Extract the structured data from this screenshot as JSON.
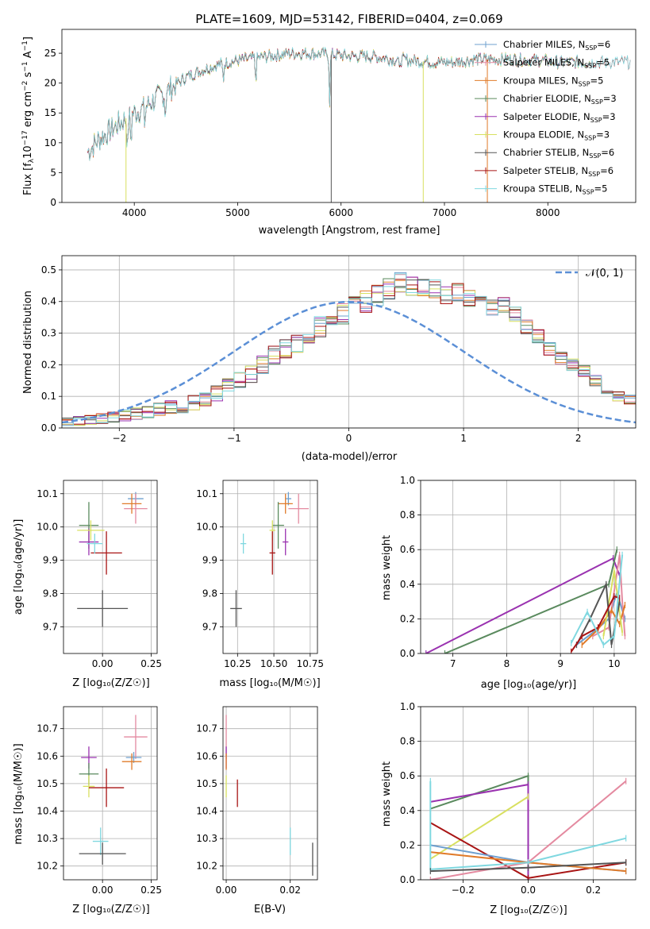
{
  "colors": {
    "chabrier_miles": "#6fa0cf",
    "salpeter_miles": "#e48aa0",
    "kroupa_miles": "#e07b2a",
    "chabrier_elodie": "#5a8a5e",
    "salpeter_elodie": "#9a32b0",
    "kroupa_elodie": "#d8e060",
    "chabrier_stelib": "#555555",
    "salpeter_stelib": "#a81414",
    "kroupa_stelib": "#80d8e0",
    "grid": "#b0b0b0"
  },
  "chart_data": [
    {
      "id": "spectrum",
      "type": "line",
      "title": "PLATE=1609, MJD=53142, FIBERID=0404, z=0.069",
      "xlabel": "wavelength [Angstrom, rest frame]",
      "ylabel_parts": [
        "Flux [f",
        "λ",
        "10",
        "−17",
        " erg cm",
        "−2",
        " s",
        "−1",
        " A",
        "−1",
        "]"
      ],
      "xlim": [
        3300,
        8850
      ],
      "ylim": [
        0,
        29
      ],
      "xticks": [
        4000,
        5000,
        6000,
        7000,
        8000
      ],
      "yticks": [
        0,
        5,
        10,
        15,
        20,
        25
      ],
      "continuum_x": [
        3550,
        3650,
        3800,
        3950,
        4100,
        4300,
        4500,
        4700,
        4900,
        5100,
        5300,
        5500,
        5700,
        5900,
        6100,
        6300,
        6500,
        6700,
        6900,
        7100,
        7300,
        7500,
        7700,
        7900,
        8100,
        8300,
        8500,
        8800
      ],
      "continuum_y": [
        8.5,
        10.5,
        12.5,
        14.5,
        16.0,
        18.5,
        21.0,
        22.5,
        23.5,
        24.0,
        24.5,
        25.0,
        25.0,
        24.8,
        24.5,
        24.5,
        24.0,
        23.8,
        23.5,
        23.5,
        24.0,
        24.0,
        24.0,
        23.8,
        23.5,
        23.5,
        23.5,
        23.5
      ],
      "legend": [
        {
          "label": "Chabrier MILES, N",
          "sub": "SSP",
          "tail": "=6",
          "color_key": "chabrier_miles"
        },
        {
          "label": "Salpeter MILES, N",
          "sub": "SSP",
          "tail": "=5",
          "color_key": "salpeter_miles"
        },
        {
          "label": "Kroupa MILES, N",
          "sub": "SSP",
          "tail": "=5",
          "color_key": "kroupa_miles"
        },
        {
          "label": "Chabrier ELODIE, N",
          "sub": "SSP",
          "tail": "=3",
          "color_key": "chabrier_elodie"
        },
        {
          "label": "Salpeter ELODIE, N",
          "sub": "SSP",
          "tail": "=3",
          "color_key": "salpeter_elodie"
        },
        {
          "label": "Kroupa ELODIE, N",
          "sub": "SSP",
          "tail": "=3",
          "color_key": "kroupa_elodie"
        },
        {
          "label": "Chabrier STELIB, N",
          "sub": "SSP",
          "tail": "=6",
          "color_key": "chabrier_stelib"
        },
        {
          "label": "Salpeter STELIB, N",
          "sub": "SSP",
          "tail": "=6",
          "color_key": "salpeter_stelib"
        },
        {
          "label": "Kroupa STELIB, N",
          "sub": "SSP",
          "tail": "=5",
          "color_key": "kroupa_stelib"
        }
      ],
      "legend_placement": "top-right",
      "grid": false
    },
    {
      "id": "residuals",
      "type": "histogram",
      "xlabel": "(data-model)/error",
      "ylabel": "Normed distribution",
      "xlim": [
        -2.5,
        2.5
      ],
      "ylim": [
        0,
        0.545
      ],
      "xticks": [
        -2,
        -1,
        0,
        1,
        2
      ],
      "xtick_labels": [
        "−2",
        "−1",
        "0",
        "1",
        "2"
      ],
      "yticks": [
        0.0,
        0.1,
        0.2,
        0.3,
        0.4,
        0.5
      ],
      "ytick_labels": [
        "0.0",
        "0.1",
        "0.2",
        "0.3",
        "0.4",
        "0.5"
      ],
      "bin_width": 0.1,
      "bin_start": -2.5,
      "base_heights": [
        0.02,
        0.022,
        0.025,
        0.03,
        0.035,
        0.04,
        0.045,
        0.05,
        0.06,
        0.065,
        0.07,
        0.08,
        0.09,
        0.11,
        0.13,
        0.15,
        0.17,
        0.2,
        0.23,
        0.25,
        0.27,
        0.3,
        0.32,
        0.34,
        0.36,
        0.38,
        0.4,
        0.42,
        0.44,
        0.46,
        0.45,
        0.44,
        0.44,
        0.42,
        0.43,
        0.41,
        0.4,
        0.38,
        0.39,
        0.36,
        0.32,
        0.29,
        0.25,
        0.22,
        0.2,
        0.18,
        0.15,
        0.12,
        0.1,
        0.09
      ],
      "gaussian_label": "𝒩(0, 1)",
      "gaussian_color": "#5b8fd6",
      "legend_placement": "top-right",
      "grid": true
    },
    {
      "id": "age_vs_Z",
      "type": "errorbar",
      "xlabel": "Z [log₁₀(Z/Z☉)]",
      "ylabel": "age  [log₁₀(age/yr)]",
      "xlim": [
        -0.2,
        0.28
      ],
      "ylim": [
        9.62,
        10.14
      ],
      "xticks": [
        -0.25,
        0.0,
        0.25
      ],
      "xtick_labels": [
        "",
        "0.00",
        "0.25"
      ],
      "yticks": [
        9.7,
        9.8,
        9.9,
        10.0,
        10.1
      ],
      "ytick_labels": [
        "9.7",
        "9.8",
        "9.9",
        "10.0",
        "10.1"
      ],
      "points": [
        {
          "x": 0.17,
          "y": 10.085,
          "xerr": 0.04,
          "yerr": 0.02,
          "color_key": "chabrier_miles"
        },
        {
          "x": 0.17,
          "y": 10.055,
          "xerr": 0.06,
          "yerr": 0.045,
          "color_key": "salpeter_miles"
        },
        {
          "x": 0.15,
          "y": 10.07,
          "xerr": 0.05,
          "yerr": 0.03,
          "color_key": "kroupa_miles"
        },
        {
          "x": -0.07,
          "y": 10.005,
          "xerr": 0.05,
          "yerr": 0.07,
          "color_key": "chabrier_elodie"
        },
        {
          "x": -0.07,
          "y": 9.955,
          "xerr": 0.05,
          "yerr": 0.04,
          "color_key": "salpeter_elodie"
        },
        {
          "x": -0.06,
          "y": 9.99,
          "xerr": 0.07,
          "yerr": 0.03,
          "color_key": "kroupa_elodie"
        },
        {
          "x": 0.0,
          "y": 9.755,
          "xerr": 0.13,
          "yerr": 0.055,
          "color_key": "chabrier_stelib"
        },
        {
          "x": 0.02,
          "y": 9.922,
          "xerr": 0.08,
          "yerr": 0.065,
          "color_key": "salpeter_stelib"
        },
        {
          "x": -0.04,
          "y": 9.95,
          "xerr": 0.04,
          "yerr": 0.03,
          "color_key": "kroupa_stelib"
        }
      ],
      "grid": true
    },
    {
      "id": "age_vs_mass",
      "type": "errorbar",
      "xlabel": "mass [log₁₀(M/M☉)]",
      "ylabel": "",
      "xlim": [
        10.15,
        10.8
      ],
      "ylim": [
        9.62,
        10.14
      ],
      "xticks": [
        10.25,
        10.5,
        10.75
      ],
      "xtick_labels": [
        "10.25",
        "10.50",
        "10.75"
      ],
      "yticks": [
        9.7,
        9.8,
        9.9,
        10.0,
        10.1
      ],
      "ytick_labels": [
        "9.7",
        "9.8",
        "9.9",
        "10.0",
        "10.1"
      ],
      "points": [
        {
          "x": 10.6,
          "y": 10.085,
          "xerr": 0.02,
          "yerr": 0.02,
          "color_key": "chabrier_miles"
        },
        {
          "x": 10.67,
          "y": 10.055,
          "xerr": 0.07,
          "yerr": 0.045,
          "color_key": "salpeter_miles"
        },
        {
          "x": 10.58,
          "y": 10.07,
          "xerr": 0.05,
          "yerr": 0.03,
          "color_key": "kroupa_miles"
        },
        {
          "x": 10.53,
          "y": 10.005,
          "xerr": 0.04,
          "yerr": 0.07,
          "color_key": "chabrier_elodie"
        },
        {
          "x": 10.58,
          "y": 9.955,
          "xerr": 0.02,
          "yerr": 0.04,
          "color_key": "salpeter_elodie"
        },
        {
          "x": 10.49,
          "y": 9.99,
          "xerr": 0.02,
          "yerr": 0.03,
          "color_key": "kroupa_elodie"
        },
        {
          "x": 10.24,
          "y": 9.755,
          "xerr": 0.04,
          "yerr": 0.055,
          "color_key": "chabrier_stelib"
        },
        {
          "x": 10.49,
          "y": 9.922,
          "xerr": 0.02,
          "yerr": 0.065,
          "color_key": "salpeter_stelib"
        },
        {
          "x": 10.29,
          "y": 9.95,
          "xerr": 0.02,
          "yerr": 0.03,
          "color_key": "kroupa_stelib"
        }
      ],
      "grid": true
    },
    {
      "id": "weight_vs_age",
      "type": "line",
      "xlabel": "age  [log₁₀(age/yr)]",
      "ylabel": "mass weight",
      "xlim": [
        6.4,
        10.4
      ],
      "ylim": [
        0.0,
        1.0
      ],
      "xticks": [
        7,
        8,
        9,
        10
      ],
      "yticks": [
        0.0,
        0.2,
        0.4,
        0.6,
        0.8,
        1.0
      ],
      "ytick_labels": [
        "0.0",
        "0.2",
        "0.4",
        "0.6",
        "0.8",
        "1.0"
      ],
      "series": [
        {
          "color_key": "salpeter_elodie",
          "x": [
            6.5,
            9.98,
            10.1
          ],
          "y": [
            0.0,
            0.55,
            0.45
          ]
        },
        {
          "color_key": "chabrier_elodie",
          "x": [
            6.85,
            9.9,
            10.05
          ],
          "y": [
            0.0,
            0.4,
            0.6
          ]
        },
        {
          "color_key": "chabrier_miles",
          "x": [
            9.3,
            9.6,
            9.9,
            10.05,
            10.2
          ],
          "y": [
            0.05,
            0.12,
            0.2,
            0.35,
            0.2
          ]
        },
        {
          "color_key": "salpeter_miles",
          "x": [
            9.6,
            9.9,
            10.1,
            10.15,
            10.2
          ],
          "y": [
            0.1,
            0.15,
            0.57,
            0.3,
            0.1
          ]
        },
        {
          "color_key": "kroupa_miles",
          "x": [
            9.4,
            9.7,
            9.95,
            10.1,
            10.2
          ],
          "y": [
            0.05,
            0.14,
            0.25,
            0.17,
            0.28
          ]
        },
        {
          "color_key": "kroupa_elodie",
          "x": [
            9.8,
            10.0,
            10.15
          ],
          "y": [
            0.1,
            0.48,
            0.12
          ]
        },
        {
          "color_key": "chabrier_stelib",
          "x": [
            9.3,
            9.55,
            9.85,
            9.95,
            10.1
          ],
          "y": [
            0.05,
            0.2,
            0.4,
            0.05,
            0.3
          ]
        },
        {
          "color_key": "salpeter_stelib",
          "x": [
            9.2,
            9.4,
            9.7,
            10.0,
            10.1
          ],
          "y": [
            0.01,
            0.1,
            0.15,
            0.33,
            0.32
          ]
        },
        {
          "color_key": "kroupa_stelib",
          "x": [
            9.2,
            9.5,
            9.8,
            10.0,
            10.15
          ],
          "y": [
            0.06,
            0.24,
            0.05,
            0.1,
            0.57
          ]
        }
      ],
      "grid": true
    },
    {
      "id": "mass_vs_Z",
      "type": "errorbar",
      "xlabel": "Z [log₁₀(Z/Z☉)]",
      "ylabel": "mass [log₁₀(M/M☉)]",
      "xlim": [
        -0.2,
        0.28
      ],
      "ylim": [
        10.15,
        10.78
      ],
      "xticks": [
        -0.25,
        0.0,
        0.25
      ],
      "xtick_labels": [
        "",
        "0.00",
        "0.25"
      ],
      "yticks": [
        10.2,
        10.3,
        10.4,
        10.5,
        10.6,
        10.7
      ],
      "ytick_labels": [
        "10.2",
        "10.3",
        "10.4",
        "10.5",
        "10.6",
        "10.7"
      ],
      "points": [
        {
          "x": 0.17,
          "y": 10.67,
          "xerr": 0.06,
          "yerr": 0.08,
          "color_key": "salpeter_miles"
        },
        {
          "x": 0.16,
          "y": 10.595,
          "xerr": 0.04,
          "yerr": 0.02,
          "color_key": "chabrier_miles"
        },
        {
          "x": 0.15,
          "y": 10.58,
          "xerr": 0.05,
          "yerr": 0.03,
          "color_key": "kroupa_miles"
        },
        {
          "x": -0.07,
          "y": 10.595,
          "xerr": 0.04,
          "yerr": 0.04,
          "color_key": "salpeter_elodie"
        },
        {
          "x": -0.07,
          "y": 10.535,
          "xerr": 0.05,
          "yerr": 0.04,
          "color_key": "chabrier_elodie"
        },
        {
          "x": -0.07,
          "y": 10.49,
          "xerr": 0.03,
          "yerr": 0.04,
          "color_key": "kroupa_elodie"
        },
        {
          "x": 0.02,
          "y": 10.485,
          "xerr": 0.09,
          "yerr": 0.07,
          "color_key": "salpeter_stelib"
        },
        {
          "x": -0.01,
          "y": 10.29,
          "xerr": 0.04,
          "yerr": 0.05,
          "color_key": "kroupa_stelib"
        },
        {
          "x": 0.0,
          "y": 10.245,
          "xerr": 0.12,
          "yerr": 0.04,
          "color_key": "chabrier_stelib"
        }
      ],
      "grid": true
    },
    {
      "id": "mass_vs_ebv",
      "type": "errorbar",
      "xlabel": "E(B-V)",
      "ylabel": "",
      "xlim": [
        -0.001,
        0.0285
      ],
      "ylim": [
        10.15,
        10.78
      ],
      "xticks": [
        0.0,
        0.02
      ],
      "xtick_labels": [
        "0.00",
        "0.02"
      ],
      "yticks": [
        10.2,
        10.3,
        10.4,
        10.5,
        10.6,
        10.7
      ],
      "ytick_labels": [
        "10.2",
        "10.3",
        "10.4",
        "10.5",
        "10.6",
        "10.7"
      ],
      "points": [
        {
          "x": 0.0,
          "y": 10.67,
          "xerr": 0.0,
          "yerr": 0.08,
          "color_key": "salpeter_miles"
        },
        {
          "x": 0.0,
          "y": 10.595,
          "xerr": 0.0,
          "yerr": 0.04,
          "color_key": "salpeter_elodie"
        },
        {
          "x": 0.0,
          "y": 10.58,
          "xerr": 0.0,
          "yerr": 0.03,
          "color_key": "kroupa_miles"
        },
        {
          "x": 0.0,
          "y": 10.49,
          "xerr": 0.0,
          "yerr": 0.04,
          "color_key": "kroupa_elodie"
        },
        {
          "x": 0.0035,
          "y": 10.465,
          "xerr": 0.0,
          "yerr": 0.05,
          "color_key": "salpeter_stelib"
        },
        {
          "x": 0.02,
          "y": 10.29,
          "xerr": 0.0,
          "yerr": 0.05,
          "color_key": "kroupa_stelib"
        },
        {
          "x": 0.027,
          "y": 10.225,
          "xerr": 0.0,
          "yerr": 0.06,
          "color_key": "chabrier_stelib"
        }
      ],
      "grid": true
    },
    {
      "id": "weight_vs_Z",
      "type": "line",
      "xlabel": "Z [log₁₀(Z/Z☉)]",
      "ylabel": "mass weight",
      "xlim": [
        -0.33,
        0.33
      ],
      "ylim": [
        0.0,
        1.0
      ],
      "xticks": [
        -0.2,
        0.0,
        0.2
      ],
      "xtick_labels": [
        "−0.2",
        "0.0",
        "0.2"
      ],
      "yticks": [
        0.0,
        0.2,
        0.4,
        0.6,
        0.8,
        1.0
      ],
      "ytick_labels": [
        "0.0",
        "0.2",
        "0.4",
        "0.6",
        "0.8",
        "1.0"
      ],
      "series": [
        {
          "color_key": "chabrier_elodie",
          "x": [
            -0.3,
            0.0,
            0.0
          ],
          "y": [
            0.41,
            0.6,
            0.0
          ]
        },
        {
          "color_key": "salpeter_elodie",
          "x": [
            -0.3,
            0.0,
            0.0
          ],
          "y": [
            0.45,
            0.55,
            0.0
          ]
        },
        {
          "color_key": "kroupa_elodie",
          "x": [
            -0.3,
            0.0
          ],
          "y": [
            0.12,
            0.48
          ]
        },
        {
          "color_key": "salpeter_stelib",
          "x": [
            -0.3,
            0.0,
            0.3
          ],
          "y": [
            0.33,
            0.01,
            0.1
          ]
        },
        {
          "color_key": "chabrier_miles",
          "x": [
            -0.3,
            0.0,
            0.3
          ],
          "y": [
            0.2,
            0.1,
            0.05
          ]
        },
        {
          "color_key": "kroupa_miles",
          "x": [
            -0.3,
            0.0,
            0.3
          ],
          "y": [
            0.16,
            0.1,
            0.05
          ]
        },
        {
          "color_key": "salpeter_miles",
          "x": [
            -0.3,
            0.0,
            0.3
          ],
          "y": [
            0.0,
            0.1,
            0.57
          ]
        },
        {
          "color_key": "kroupa_stelib",
          "x": [
            -0.3,
            -0.3,
            0.0,
            0.3
          ],
          "y": [
            0.57,
            0.06,
            0.1,
            0.24
          ]
        },
        {
          "color_key": "chabrier_stelib",
          "x": [
            -0.3,
            0.0,
            0.3
          ],
          "y": [
            0.05,
            0.07,
            0.1
          ]
        }
      ],
      "grid": true
    }
  ]
}
